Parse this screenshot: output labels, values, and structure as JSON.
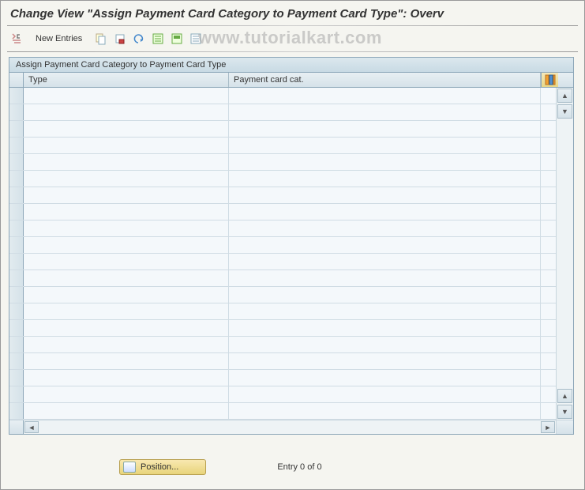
{
  "page_title": "Change View \"Assign Payment Card Category to Payment Card Type\": Overv",
  "watermark": "www.tutorialkart.com",
  "toolbar": {
    "new_entries_label": "New Entries"
  },
  "table": {
    "title": "Assign Payment Card Category to Payment Card Type",
    "columns": {
      "type": "Type",
      "cat": "Payment card cat."
    },
    "row_count": 20,
    "rows": []
  },
  "footer": {
    "position_label": "Position...",
    "entry_label": "Entry 0 of 0"
  },
  "colors": {
    "header_gradient_top": "#dce8ee",
    "header_gradient_bottom": "#c8dae4",
    "row_bg": "#f4f8fb",
    "border": "#8ca6b8",
    "watermark_color": "rgba(160,160,160,0.5)",
    "position_btn_top": "#f8e8b0",
    "position_btn_bottom": "#e8d47a"
  }
}
